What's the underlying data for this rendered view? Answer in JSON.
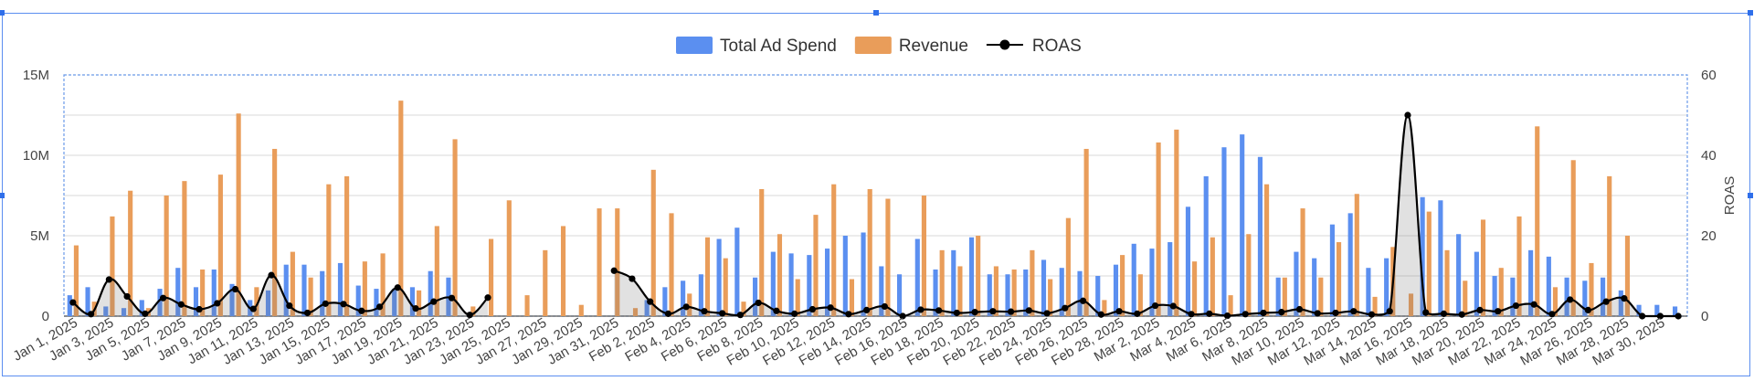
{
  "chart_data": {
    "type": "bar",
    "title": "",
    "xlabel": "",
    "y2label": "ROAS",
    "ylim": [
      0,
      15000000
    ],
    "y2lim": [
      0,
      60
    ],
    "yticks": [
      "0",
      "5M",
      "10M",
      "15M"
    ],
    "y2ticks": [
      "0",
      "20",
      "40",
      "60"
    ],
    "legend_position": "top-center",
    "grid": true,
    "dates": [
      "Jan 1, 2025",
      "Jan 2, 2025",
      "Jan 3, 2025",
      "Jan 4, 2025",
      "Jan 5, 2025",
      "Jan 6, 2025",
      "Jan 7, 2025",
      "Jan 8, 2025",
      "Jan 9, 2025",
      "Jan 10, 2025",
      "Jan 11, 2025",
      "Jan 12, 2025",
      "Jan 13, 2025",
      "Jan 14, 2025",
      "Jan 15, 2025",
      "Jan 16, 2025",
      "Jan 17, 2025",
      "Jan 18, 2025",
      "Jan 19, 2025",
      "Jan 20, 2025",
      "Jan 21, 2025",
      "Jan 22, 2025",
      "Jan 23, 2025",
      "Jan 24, 2025",
      "Jan 25, 2025",
      "Jan 26, 2025",
      "Jan 27, 2025",
      "Jan 28, 2025",
      "Jan 29, 2025",
      "Jan 30, 2025",
      "Jan 31, 2025",
      "Feb 1, 2025",
      "Feb 2, 2025",
      "Feb 3, 2025",
      "Feb 4, 2025",
      "Feb 5, 2025",
      "Feb 6, 2025",
      "Feb 7, 2025",
      "Feb 8, 2025",
      "Feb 9, 2025",
      "Feb 10, 2025",
      "Feb 11, 2025",
      "Feb 12, 2025",
      "Feb 13, 2025",
      "Feb 14, 2025",
      "Feb 15, 2025",
      "Feb 16, 2025",
      "Feb 17, 2025",
      "Feb 18, 2025",
      "Feb 19, 2025",
      "Feb 20, 2025",
      "Feb 21, 2025",
      "Feb 22, 2025",
      "Feb 23, 2025",
      "Feb 24, 2025",
      "Feb 25, 2025",
      "Feb 26, 2025",
      "Feb 27, 2025",
      "Feb 28, 2025",
      "Mar 1, 2025",
      "Mar 2, 2025",
      "Mar 3, 2025",
      "Mar 4, 2025",
      "Mar 5, 2025",
      "Mar 6, 2025",
      "Mar 7, 2025",
      "Mar 8, 2025",
      "Mar 9, 2025",
      "Mar 10, 2025",
      "Mar 11, 2025",
      "Mar 12, 2025",
      "Mar 13, 2025",
      "Mar 14, 2025",
      "Mar 15, 2025",
      "Mar 16, 2025",
      "Mar 17, 2025",
      "Mar 18, 2025",
      "Mar 19, 2025",
      "Mar 20, 2025",
      "Mar 21, 2025",
      "Mar 22, 2025",
      "Mar 23, 2025",
      "Mar 24, 2025",
      "Mar 25, 2025",
      "Mar 26, 2025",
      "Mar 27, 2025",
      "Mar 28, 2025",
      "Mar 29, 2025",
      "Mar 30, 2025",
      "Mar 31, 2025"
    ],
    "series": [
      {
        "name": "Total Ad Spend",
        "type": "bar",
        "color": "#5b8ff0",
        "values": [
          1.3,
          1.8,
          0.6,
          0.5,
          1.0,
          1.7,
          3.0,
          1.8,
          2.9,
          2.0,
          1.0,
          1.6,
          3.2,
          3.2,
          2.8,
          3.3,
          1.9,
          1.7,
          1.7,
          1.8,
          2.8,
          2.4,
          0,
          0,
          0,
          0,
          0,
          0,
          0,
          0,
          0,
          0,
          1.0,
          1.8,
          2.2,
          2.6,
          4.8,
          5.5,
          2.4,
          4.0,
          3.9,
          3.8,
          4.2,
          5.0,
          5.2,
          3.1,
          2.6,
          4.8,
          2.9,
          4.1,
          4.9,
          2.6,
          2.6,
          2.9,
          3.5,
          3.0,
          2.8,
          2.5,
          3.2,
          4.5,
          4.2,
          4.6,
          6.8,
          8.7,
          10.5,
          11.3,
          9.9,
          2.4,
          4.0,
          3.6,
          5.7,
          6.4,
          3.0,
          3.6,
          0,
          7.4,
          7.2,
          5.1,
          4.0,
          2.5,
          2.4,
          4.1,
          3.7,
          2.4,
          2.2,
          2.4,
          1.6,
          0.7,
          0.7,
          0.6
        ]
      },
      {
        "name": "Revenue",
        "type": "bar",
        "color": "#e99d5a",
        "values": [
          4.4,
          0.9,
          6.2,
          7.8,
          0.5,
          7.5,
          8.4,
          2.9,
          8.8,
          12.6,
          1.8,
          10.4,
          4.0,
          2.4,
          8.2,
          8.7,
          3.4,
          3.9,
          13.4,
          1.6,
          5.6,
          11.0,
          0.6,
          4.8,
          7.2,
          1.3,
          4.1,
          5.6,
          0.7,
          6.7,
          6.7,
          0.5,
          9.1,
          6.4,
          1.4,
          4.9,
          3.6,
          0.9,
          7.9,
          5.1,
          2.3,
          6.3,
          8.2,
          2.3,
          7.9,
          7.3,
          0,
          7.5,
          4.1,
          3.1,
          5.0,
          3.1,
          2.9,
          4.1,
          2.3,
          6.1,
          10.4,
          1.0,
          3.8,
          2.6,
          10.8,
          11.6,
          3.4,
          4.9,
          1.3,
          5.1,
          8.2,
          2.4,
          6.7,
          2.4,
          4.6,
          7.6,
          1.2,
          4.3,
          1.4,
          6.5,
          4.1,
          2.2,
          6.0,
          3.0,
          6.2,
          11.8,
          1.8,
          9.7,
          3.3,
          8.7,
          5.0,
          0,
          0,
          0
        ]
      },
      {
        "name": "ROAS",
        "type": "line",
        "color": "#000000",
        "values": [
          3.4,
          0.5,
          9.1,
          4.9,
          0.6,
          4.5,
          2.9,
          1.7,
          3.2,
          6.7,
          1.8,
          10.2,
          2.6,
          0.8,
          3.1,
          3.0,
          1.3,
          2.3,
          7.1,
          1.9,
          3.6,
          4.5,
          0.3,
          4.6,
          null,
          null,
          null,
          null,
          null,
          null,
          11.3,
          9.3,
          3.6,
          0.6,
          2.3,
          1.2,
          0.7,
          0.3,
          3.3,
          1.3,
          0.6,
          1.7,
          2.1,
          0.5,
          1.5,
          2.4,
          0,
          1.6,
          1.4,
          0.8,
          1.0,
          1.2,
          1.1,
          1.4,
          0.7,
          2.0,
          3.8,
          0.4,
          1.2,
          0.6,
          2.6,
          2.5,
          0.5,
          0.6,
          0.1,
          0.5,
          0.8,
          1.0,
          1.7,
          0.7,
          0.8,
          1.2,
          0.4,
          1.2,
          50.0,
          0.9,
          0.6,
          0.4,
          1.5,
          1.2,
          2.6,
          2.9,
          0.5,
          4.1,
          1.5,
          3.6,
          4.4,
          0,
          0,
          0
        ]
      }
    ]
  },
  "legend": [
    {
      "label": "Total Ad Spend",
      "color": "#5b8ff0",
      "kind": "box"
    },
    {
      "label": "Revenue",
      "color": "#e99d5a",
      "kind": "box"
    },
    {
      "label": "ROAS",
      "color": "#000000",
      "kind": "line"
    }
  ],
  "colors": {
    "frame": "#5b8ef0",
    "grid": "#d9d9d9",
    "plot_border": "#6a9ae8"
  }
}
